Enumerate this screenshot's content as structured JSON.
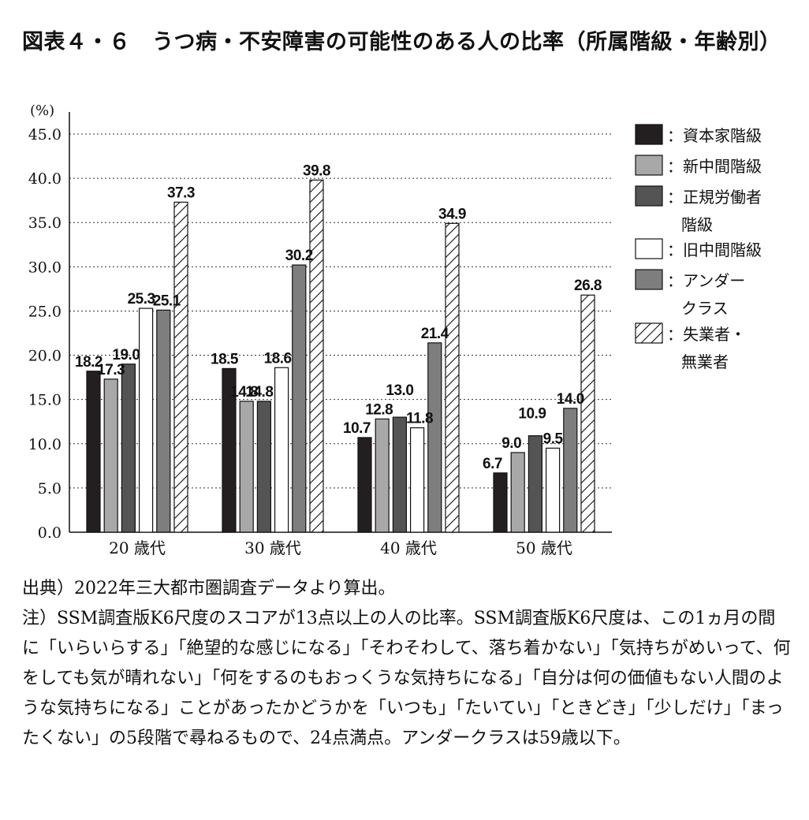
{
  "title": "図表４・６　うつ病・不安障害の可能性のある人の比率（所属階級・年齢別）",
  "chart_data": {
    "type": "bar",
    "title": "図表４・６　うつ病・不安障害の可能性のある人の比率（所属階級・年齢別）",
    "ylabel": "(%)",
    "xlabel": "",
    "ylim": [
      0,
      45
    ],
    "yticks": [
      "0.0",
      "5.0",
      "10.0",
      "15.0",
      "20.0",
      "25.0",
      "30.0",
      "35.0",
      "40.0",
      "45.0"
    ],
    "grid": "horizontal dotted",
    "legend_position": "right",
    "categories": [
      "20 歳代",
      "30 歳代",
      "40 歳代",
      "50 歳代"
    ],
    "series": [
      {
        "name": "資本家階級",
        "values": [
          18.2,
          18.5,
          10.7,
          6.7
        ],
        "labels": [
          "18.2",
          "18.5",
          "10.7",
          "6.7"
        ],
        "fill": "#231f20",
        "hatch": false
      },
      {
        "name": "新中間階級",
        "values": [
          17.3,
          14.8,
          12.8,
          9.0
        ],
        "labels": [
          "17.3",
          "14.8",
          "12.8",
          "9.0"
        ],
        "fill": "#a8a8a8",
        "hatch": false
      },
      {
        "name": "正規労働者階級",
        "legend_lines": [
          "正規労働者",
          "階級"
        ],
        "values": [
          19.0,
          14.8,
          13.0,
          10.9
        ],
        "labels": [
          "19.0",
          "14.8",
          "13.0",
          "10.9"
        ],
        "fill": "#545454",
        "hatch": false
      },
      {
        "name": "旧中間階級",
        "values": [
          25.3,
          18.6,
          11.8,
          9.5
        ],
        "labels": [
          "25.3",
          "18.6",
          "11.8",
          "9.5"
        ],
        "fill": "#ffffff",
        "hatch": false
      },
      {
        "name": "アンダークラス",
        "legend_lines": [
          "アンダー",
          "クラス"
        ],
        "values": [
          25.1,
          30.2,
          21.4,
          14.0
        ],
        "labels": [
          "25.1",
          "30.2",
          "21.4",
          "14.0"
        ],
        "fill": "#7e7e7e",
        "hatch": false
      },
      {
        "name": "失業者・無業者",
        "legend_lines": [
          "失業者・",
          "無業者"
        ],
        "values": [
          37.3,
          39.8,
          34.9,
          26.8
        ],
        "labels": [
          "37.3",
          "39.8",
          "34.9",
          "26.8"
        ],
        "fill": "#ffffff",
        "hatch": true
      }
    ],
    "legend_separator": "："
  },
  "notes": [
    "出典）2022年三大都市圏調査データより算出。",
    "注）SSM調査版K6尺度のスコアが13点以上の人の比率。SSM調査版K6尺度は、この1ヵ月の間に「いらいらする」「絶望的な感じになる」「そわそわして、落ち着かない」「気持ちがめいって、何をしても気が晴れない」「何をするのもおっくうな気持ちになる」「自分は何の価値もない人間のような気持ちになる」ことがあったかどうかを「いつも」「たいてい」「ときどき」「少しだけ」「まったくない」の5段階で尋ねるもので、24点満点。アンダークラスは59歳以下。"
  ]
}
